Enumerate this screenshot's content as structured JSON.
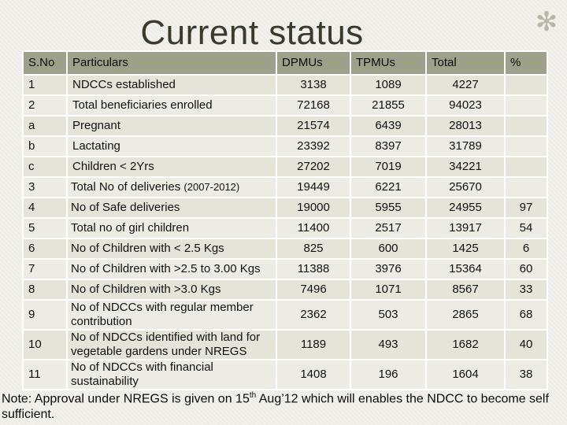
{
  "title": "Current status",
  "table": {
    "headers": [
      "S.No",
      "Particulars",
      "DPMUs",
      "TPMUs",
      "Total",
      "%"
    ],
    "rows": [
      {
        "no": "1",
        "particulars": "NDCCs  established",
        "dpmus": "3138",
        "tpmus": "1089",
        "total": "4227",
        "pct": ""
      },
      {
        "no": "2",
        "particulars": "Total beneficiaries enrolled",
        "dpmus": "72168",
        "tpmus": "21855",
        "total": "94023",
        "pct": ""
      },
      {
        "no": "a",
        "particulars": "Pregnant",
        "dpmus": "21574",
        "tpmus": "6439",
        "total": "28013",
        "pct": ""
      },
      {
        "no": "b",
        "particulars": "Lactating",
        "dpmus": "23392",
        "tpmus": "8397",
        "total": "31789",
        "pct": ""
      },
      {
        "no": "c",
        "particulars": "Children  < 2Yrs",
        "dpmus": "27202",
        "tpmus": "7019",
        "total": "34221",
        "pct": ""
      },
      {
        "no": "3",
        "particulars": "Total No of deliveries ",
        "particulars_small": "(2007-2012)",
        "dpmus": "19449",
        "tpmus": "6221",
        "total": "25670",
        "pct": ""
      },
      {
        "no": "4",
        "particulars": "No of Safe deliveries",
        "dpmus": "19000",
        "tpmus": "5955",
        "total": "24955",
        "pct": "97"
      },
      {
        "no": "5",
        "particulars": "Total no of girl children",
        "dpmus": "11400",
        "tpmus": "2517",
        "total": "13917",
        "pct": "54"
      },
      {
        "no": "6",
        "particulars": "No of Children with < 2.5 Kgs",
        "dpmus": "825",
        "tpmus": "600",
        "total": "1425",
        "pct": "6"
      },
      {
        "no": "7",
        "particulars": "No of Children with >2.5 to 3.00 Kgs",
        "dpmus": "11388",
        "tpmus": "3976",
        "total": "15364",
        "pct": "60"
      },
      {
        "no": "8",
        "particulars": "No of Children with >3.0 Kgs",
        "dpmus": "7496",
        "tpmus": "1071",
        "total": "8567",
        "pct": "33"
      },
      {
        "no": "9",
        "particulars": "No of NDCCs with regular member contribution",
        "dpmus": "2362",
        "tpmus": "503",
        "total": "2865",
        "pct": "68"
      },
      {
        "no": "10",
        "particulars": "No of NDCCs identified with land for vegetable gardens under NREGS",
        "dpmus": "1189",
        "tpmus": "493",
        "total": "1682",
        "pct": "40"
      },
      {
        "no": "11",
        "particulars": "No of NDCCs with financial sustainability",
        "dpmus": "1408",
        "tpmus": "196",
        "total": "1604",
        "pct": "38"
      }
    ]
  },
  "note": {
    "before": "Note:  Approval under NREGS is given on 15",
    "sup": "th",
    "after": " Aug’12 which will enables the NDCC to become self sufficient."
  }
}
